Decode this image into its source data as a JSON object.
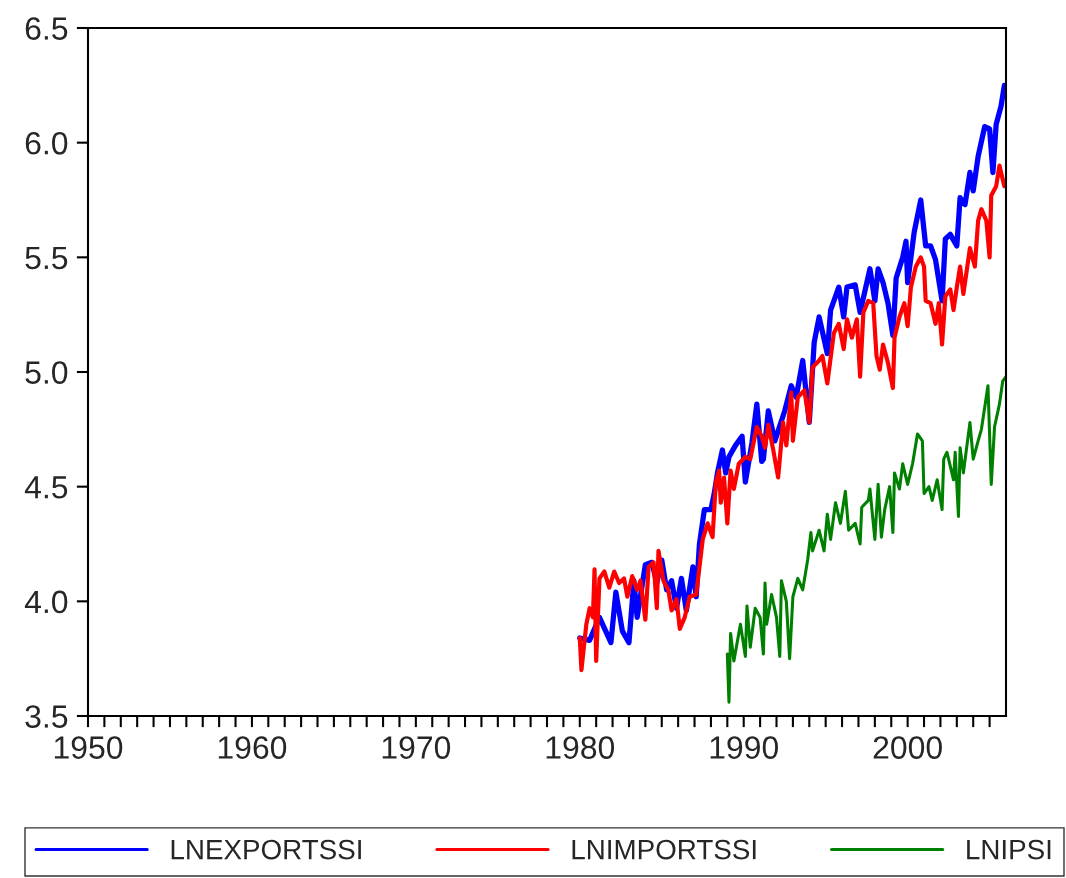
{
  "chart_data": {
    "type": "line",
    "xlim": [
      1950,
      2006
    ],
    "ylim": [
      3.5,
      6.5
    ],
    "yticks": [
      {
        "value": 3.5,
        "label": "3.5"
      },
      {
        "value": 4.0,
        "label": "4.0"
      },
      {
        "value": 4.5,
        "label": "4.5"
      },
      {
        "value": 5.0,
        "label": "5.0"
      },
      {
        "value": 5.5,
        "label": "5.5"
      },
      {
        "value": 6.0,
        "label": "6.0"
      },
      {
        "value": 6.5,
        "label": "6.5"
      }
    ],
    "xticks": [
      1950,
      {
        "value": 1951,
        "label": null
      },
      {
        "value": 1952,
        "label": null
      },
      {
        "value": 1953,
        "label": null
      },
      {
        "value": 1954,
        "label": null
      },
      {
        "value": 1955,
        "label": null
      },
      {
        "value": 1956,
        "label": null
      },
      {
        "value": 1957,
        "label": null
      },
      {
        "value": 1958,
        "label": null
      },
      {
        "value": 1959,
        "label": null
      },
      1960,
      {
        "value": 1961,
        "label": null
      },
      {
        "value": 1962,
        "label": null
      },
      {
        "value": 1963,
        "label": null
      },
      {
        "value": 1964,
        "label": null
      },
      {
        "value": 1965,
        "label": null
      },
      {
        "value": 1966,
        "label": null
      },
      {
        "value": 1967,
        "label": null
      },
      {
        "value": 1968,
        "label": null
      },
      {
        "value": 1969,
        "label": null
      },
      1970,
      {
        "value": 1971,
        "label": null
      },
      {
        "value": 1972,
        "label": null
      },
      {
        "value": 1973,
        "label": null
      },
      {
        "value": 1974,
        "label": null
      },
      {
        "value": 1975,
        "label": null
      },
      {
        "value": 1976,
        "label": null
      },
      {
        "value": 1977,
        "label": null
      },
      {
        "value": 1978,
        "label": null
      },
      {
        "value": 1979,
        "label": null
      },
      1980,
      {
        "value": 1981,
        "label": null
      },
      {
        "value": 1982,
        "label": null
      },
      {
        "value": 1983,
        "label": null
      },
      {
        "value": 1984,
        "label": null
      },
      {
        "value": 1985,
        "label": null
      },
      {
        "value": 1986,
        "label": null
      },
      {
        "value": 1987,
        "label": null
      },
      {
        "value": 1988,
        "label": null
      },
      {
        "value": 1989,
        "label": null
      },
      1990,
      {
        "value": 1991,
        "label": null
      },
      {
        "value": 1992,
        "label": null
      },
      {
        "value": 1993,
        "label": null
      },
      {
        "value": 1994,
        "label": null
      },
      {
        "value": 1995,
        "label": null
      },
      {
        "value": 1996,
        "label": null
      },
      {
        "value": 1997,
        "label": null
      },
      {
        "value": 1998,
        "label": null
      },
      {
        "value": 1999,
        "label": null
      },
      2000,
      {
        "value": 2001,
        "label": null
      },
      {
        "value": 2002,
        "label": null
      },
      {
        "value": 2003,
        "label": null
      },
      {
        "value": 2004,
        "label": null
      },
      {
        "value": 2005,
        "label": null
      }
    ],
    "grid": false,
    "legend": "bottom",
    "marker": "none",
    "line_style": "solid",
    "series": [
      {
        "name": "LNEXPORTSSI",
        "color": "#0000ff",
        "x": [
          1980.0,
          1980.6,
          1981.2,
          1981.9,
          1982.2,
          1982.6,
          1983.0,
          1983.3,
          1983.5,
          1984.0,
          1984.4,
          1984.7,
          1985.0,
          1985.3,
          1985.6,
          1985.9,
          1986.2,
          1986.5,
          1986.9,
          1987.1,
          1987.3,
          1987.6,
          1988.0,
          1988.2,
          1988.4,
          1988.7,
          1988.9,
          1989.1,
          1989.5,
          1989.9,
          1990.1,
          1990.5,
          1990.8,
          1991.1,
          1991.2,
          1991.5,
          1991.9,
          1992.5,
          1992.9,
          1993.2,
          1993.6,
          1994.0,
          1994.3,
          1994.6,
          1995.1,
          1995.3,
          1995.8,
          1996.1,
          1996.3,
          1996.8,
          1997.1,
          1997.7,
          1998.0,
          1998.2,
          1998.5,
          1998.8,
          1999.1,
          1999.3,
          1999.7,
          1999.9,
          2000.0,
          2000.4,
          2000.8,
          2001.1,
          2001.4,
          2001.7,
          2002.1,
          2002.3,
          2002.6,
          2003.0,
          2003.2,
          2003.5,
          2003.8,
          2004.0,
          2004.3,
          2004.7,
          2005.0,
          2005.2,
          2005.4,
          2005.7,
          2005.9
        ],
        "values": [
          3.84,
          3.83,
          3.93,
          3.82,
          4.04,
          3.87,
          3.82,
          4.09,
          3.93,
          4.16,
          4.17,
          4.08,
          4.18,
          4.05,
          4.09,
          3.97,
          4.1,
          3.96,
          4.15,
          4.02,
          4.25,
          4.4,
          4.4,
          4.47,
          4.56,
          4.66,
          4.56,
          4.63,
          4.68,
          4.72,
          4.52,
          4.69,
          4.86,
          4.61,
          4.62,
          4.83,
          4.7,
          4.83,
          4.94,
          4.89,
          5.05,
          4.78,
          5.13,
          5.24,
          5.08,
          5.27,
          5.37,
          5.24,
          5.37,
          5.38,
          5.26,
          5.45,
          5.31,
          5.45,
          5.39,
          5.3,
          5.16,
          5.41,
          5.5,
          5.57,
          5.39,
          5.61,
          5.75,
          5.55,
          5.55,
          5.49,
          5.31,
          5.58,
          5.6,
          5.55,
          5.76,
          5.73,
          5.87,
          5.79,
          5.94,
          6.07,
          6.06,
          5.87,
          6.08,
          6.16,
          6.25
        ]
      },
      {
        "name": "LNIMPORTSSI",
        "color": "#ff0000",
        "x": [
          1980.0,
          1980.1,
          1980.4,
          1980.6,
          1980.8,
          1980.9,
          1981.0,
          1981.2,
          1981.5,
          1981.8,
          1982.1,
          1982.4,
          1982.7,
          1982.9,
          1983.2,
          1983.5,
          1983.7,
          1984.0,
          1984.2,
          1984.5,
          1984.7,
          1984.8,
          1985.1,
          1985.4,
          1985.6,
          1985.9,
          1986.1,
          1986.4,
          1986.7,
          1987.1,
          1987.3,
          1987.5,
          1987.8,
          1988.1,
          1988.3,
          1988.5,
          1988.6,
          1988.8,
          1989.0,
          1989.2,
          1989.4,
          1989.7,
          1990.1,
          1990.4,
          1990.8,
          1991.1,
          1991.3,
          1991.5,
          1991.8,
          1992.1,
          1992.4,
          1992.6,
          1992.9,
          1993.0,
          1993.3,
          1993.7,
          1994.0,
          1994.2,
          1994.6,
          1994.8,
          1995.1,
          1995.5,
          1995.8,
          1996.1,
          1996.3,
          1996.6,
          1996.9,
          1997.1,
          1997.3,
          1997.6,
          1997.9,
          1998.1,
          1998.3,
          1998.5,
          1998.8,
          1999.1,
          1999.2,
          1999.5,
          1999.8,
          2000.0,
          2000.2,
          2000.5,
          2000.8,
          2001.0,
          2001.1,
          2001.4,
          2001.7,
          2001.9,
          2002.1,
          2002.3,
          2002.6,
          2002.8,
          2003.0,
          2003.2,
          2003.4,
          2003.8,
          2004.1,
          2004.3,
          2004.5,
          2004.8,
          2005.0,
          2005.1,
          2005.4,
          2005.6,
          2005.9,
          2006.0
        ],
        "values": [
          3.84,
          3.7,
          3.9,
          3.97,
          3.93,
          4.14,
          3.74,
          4.1,
          4.13,
          4.06,
          4.13,
          4.08,
          4.1,
          4.02,
          4.11,
          4.05,
          4.09,
          3.92,
          4.15,
          4.17,
          3.97,
          4.22,
          4.09,
          4.05,
          3.96,
          4.01,
          3.88,
          3.93,
          4.02,
          4.03,
          4.15,
          4.27,
          4.34,
          4.28,
          4.52,
          4.57,
          4.43,
          4.54,
          4.34,
          4.57,
          4.49,
          4.6,
          4.63,
          4.62,
          4.76,
          4.72,
          4.67,
          4.77,
          4.66,
          4.54,
          4.78,
          4.68,
          4.91,
          4.7,
          4.89,
          4.92,
          4.78,
          5.02,
          5.05,
          5.07,
          4.95,
          5.17,
          5.21,
          5.1,
          5.23,
          5.15,
          5.23,
          4.98,
          5.26,
          5.31,
          5.3,
          5.07,
          5.01,
          5.12,
          5.04,
          4.93,
          5.15,
          5.24,
          5.3,
          5.2,
          5.37,
          5.46,
          5.5,
          5.46,
          5.31,
          5.3,
          5.21,
          5.3,
          5.12,
          5.33,
          5.36,
          5.27,
          5.37,
          5.46,
          5.34,
          5.54,
          5.46,
          5.66,
          5.71,
          5.66,
          5.5,
          5.77,
          5.81,
          5.9,
          5.81,
          5.83
        ]
      },
      {
        "name": "LNIPSI",
        "color": "#008000",
        "x": [
          1989.0,
          1989.1,
          1989.2,
          1989.4,
          1989.6,
          1989.8,
          1990.1,
          1990.2,
          1990.4,
          1990.7,
          1991.0,
          1991.2,
          1991.3,
          1991.4,
          1991.7,
          1992.0,
          1992.2,
          1992.3,
          1992.6,
          1992.8,
          1993.0,
          1993.3,
          1993.6,
          1993.9,
          1994.1,
          1994.2,
          1994.6,
          1994.9,
          1995.1,
          1995.3,
          1995.6,
          1995.9,
          1996.2,
          1996.4,
          1996.8,
          1997.1,
          1997.2,
          1997.6,
          1997.7,
          1998.0,
          1998.2,
          1998.4,
          1998.6,
          1998.9,
          1999.1,
          1999.2,
          1999.5,
          1999.7,
          2000.0,
          2000.3,
          2000.6,
          2000.9,
          2001.0,
          2001.3,
          2001.5,
          2001.8,
          2002.1,
          2002.2,
          2002.4,
          2002.6,
          2002.8,
          2002.9,
          2003.1,
          2003.2,
          2003.4,
          2003.8,
          2004.0,
          2004.3,
          2004.5,
          2004.9,
          2005.1,
          2005.3,
          2005.6,
          2005.8,
          2006.0
        ],
        "values": [
          3.77,
          3.56,
          3.86,
          3.74,
          3.82,
          3.9,
          3.76,
          3.98,
          3.8,
          3.97,
          3.93,
          3.77,
          4.08,
          3.9,
          4.03,
          3.93,
          3.76,
          4.09,
          4.0,
          3.75,
          4.02,
          4.1,
          4.05,
          4.18,
          4.3,
          4.22,
          4.31,
          4.22,
          4.38,
          4.27,
          4.43,
          4.34,
          4.48,
          4.31,
          4.34,
          4.25,
          4.41,
          4.44,
          4.49,
          4.27,
          4.51,
          4.28,
          4.4,
          4.5,
          4.3,
          4.56,
          4.49,
          4.6,
          4.51,
          4.6,
          4.73,
          4.7,
          4.47,
          4.5,
          4.44,
          4.53,
          4.4,
          4.62,
          4.65,
          4.59,
          4.53,
          4.65,
          4.37,
          4.67,
          4.56,
          4.78,
          4.62,
          4.7,
          4.75,
          4.94,
          4.51,
          4.76,
          4.86,
          4.96,
          4.98
        ]
      }
    ]
  }
}
